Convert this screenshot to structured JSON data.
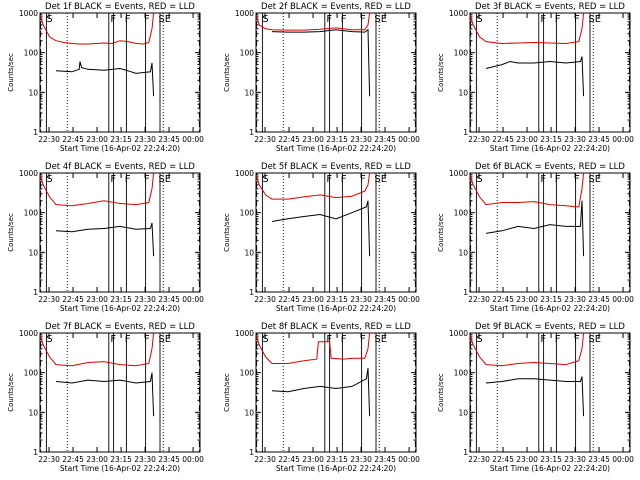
{
  "chart_data": {
    "type": "line",
    "ylabel": "Counts/sec",
    "xlabel": "Start Time (16-Apr-02 22:24:20)",
    "y_scale": "log",
    "ylim": [
      1,
      1000
    ],
    "y_ticks": [
      1,
      10,
      100,
      1000
    ],
    "y_tick_labels": [
      "1",
      "10",
      "100",
      "1000"
    ],
    "x_unit": "minutes after 22:24:20",
    "xlim": [
      0,
      100
    ],
    "x_ticks": [
      5.67,
      20.67,
      35.67,
      50.67,
      65.67,
      80.67,
      95.67
    ],
    "x_tick_labels": [
      "22:30",
      "22:45",
      "23:00",
      "23:15",
      "23:30",
      "23:45",
      "00:00"
    ],
    "colors": {
      "events": "#000000",
      "lld": "#e00000"
    },
    "panels": [
      {
        "title": "Det 1f BLACK = Events, RED = LLD",
        "markers": [
          "S",
          "F",
          "F",
          "F",
          "SE"
        ],
        "events": {
          "x": [
            10,
            20,
            24.5,
            25,
            26,
            30,
            40,
            50,
            55,
            60,
            69,
            70,
            71
          ],
          "y": [
            35,
            33,
            38,
            60,
            42,
            38,
            36,
            40,
            35,
            30,
            33,
            55,
            8
          ]
        },
        "lld": {
          "x": [
            0,
            2,
            6,
            10,
            15,
            20,
            25,
            30,
            40,
            45,
            50,
            55,
            60,
            65,
            68,
            70,
            71
          ],
          "y": [
            900,
            500,
            250,
            200,
            180,
            170,
            165,
            165,
            175,
            170,
            200,
            190,
            170,
            165,
            180,
            400,
            1000
          ]
        }
      },
      {
        "title": "Det 2f BLACK = Events, RED = LLD",
        "markers": [
          "S",
          "F",
          "F",
          "F",
          "SE"
        ],
        "events": {
          "x": [
            10,
            20,
            30,
            40,
            50,
            60,
            68,
            70,
            71
          ],
          "y": [
            340,
            330,
            330,
            340,
            380,
            340,
            330,
            380,
            8
          ]
        },
        "lld": {
          "x": [
            0,
            2,
            6,
            10,
            20,
            30,
            40,
            50,
            60,
            68,
            70,
            71
          ],
          "y": [
            900,
            500,
            400,
            380,
            370,
            370,
            390,
            420,
            380,
            380,
            500,
            1000
          ]
        }
      },
      {
        "title": "Det 3f BLACK = Events, RED = LLD",
        "markers": [
          "S",
          "F",
          "F",
          "F",
          "SE"
        ],
        "events": {
          "x": [
            10,
            20,
            25,
            30,
            40,
            50,
            60,
            69,
            70,
            71
          ],
          "y": [
            40,
            50,
            60,
            55,
            55,
            60,
            55,
            60,
            80,
            8
          ]
        },
        "lld": {
          "x": [
            0,
            2,
            6,
            10,
            20,
            30,
            40,
            50,
            60,
            68,
            70,
            71
          ],
          "y": [
            900,
            500,
            250,
            190,
            170,
            175,
            180,
            175,
            170,
            190,
            400,
            1000
          ]
        }
      },
      {
        "title": "Det 4f BLACK = Events, RED = LLD",
        "markers": [
          "S",
          "F",
          "F",
          "F",
          "SE"
        ],
        "events": {
          "x": [
            10,
            20,
            30,
            40,
            50,
            60,
            69,
            70,
            71
          ],
          "y": [
            35,
            33,
            38,
            40,
            45,
            38,
            40,
            55,
            8
          ]
        },
        "lld": {
          "x": [
            0,
            2,
            6,
            10,
            20,
            30,
            40,
            50,
            60,
            68,
            70,
            71
          ],
          "y": [
            900,
            500,
            250,
            160,
            150,
            170,
            200,
            170,
            160,
            180,
            400,
            1000
          ]
        }
      },
      {
        "title": "Det 5f BLACK = Events, RED = LLD",
        "markers": [
          "S",
          "F",
          "F",
          "F",
          "SE"
        ],
        "events": {
          "x": [
            10,
            20,
            30,
            40,
            50,
            60,
            69,
            70,
            71
          ],
          "y": [
            60,
            70,
            80,
            90,
            70,
            100,
            140,
            200,
            8
          ]
        },
        "lld": {
          "x": [
            0,
            2,
            6,
            10,
            20,
            30,
            40,
            50,
            60,
            68,
            70,
            71
          ],
          "y": [
            900,
            500,
            280,
            220,
            220,
            250,
            280,
            240,
            260,
            350,
            500,
            1000
          ]
        }
      },
      {
        "title": "Det 6f BLACK = Events, RED = LLD",
        "markers": [
          "S",
          "F",
          "F",
          "F",
          "SE"
        ],
        "events": {
          "x": [
            10,
            20,
            30,
            40,
            50,
            60,
            69,
            70,
            71
          ],
          "y": [
            30,
            35,
            45,
            40,
            50,
            45,
            45,
            200,
            8
          ]
        },
        "lld": {
          "x": [
            0,
            2,
            6,
            10,
            20,
            30,
            40,
            50,
            60,
            68,
            70,
            71
          ],
          "y": [
            900,
            500,
            250,
            160,
            180,
            180,
            190,
            160,
            150,
            140,
            400,
            1000
          ]
        }
      },
      {
        "title": "Det 7f BLACK = Events, RED = LLD",
        "markers": [
          "S",
          "F",
          "F",
          "F",
          "SE"
        ],
        "events": {
          "x": [
            10,
            20,
            30,
            40,
            50,
            60,
            69,
            70,
            71
          ],
          "y": [
            60,
            55,
            65,
            60,
            65,
            55,
            60,
            100,
            8
          ]
        },
        "lld": {
          "x": [
            0,
            2,
            6,
            10,
            20,
            30,
            40,
            50,
            60,
            68,
            70,
            71
          ],
          "y": [
            900,
            500,
            250,
            160,
            150,
            180,
            190,
            160,
            150,
            170,
            400,
            1000
          ]
        }
      },
      {
        "title": "Det 8f BLACK = Events, RED = LLD",
        "markers": [
          "S",
          "F",
          "F",
          "F",
          "SE"
        ],
        "events": {
          "x": [
            10,
            20,
            30,
            40,
            50,
            60,
            69,
            70,
            71
          ],
          "y": [
            35,
            33,
            40,
            45,
            40,
            45,
            70,
            130,
            8
          ]
        },
        "lld": {
          "x": [
            0,
            2,
            6,
            10,
            20,
            30,
            38,
            39,
            46,
            47,
            55,
            60,
            68,
            70,
            71
          ],
          "y": [
            900,
            500,
            250,
            170,
            170,
            200,
            220,
            600,
            600,
            230,
            220,
            230,
            230,
            400,
            1000
          ]
        }
      },
      {
        "title": "Det 9f BLACK = Events, RED = LLD",
        "markers": [
          "S",
          "F",
          "F",
          "F",
          "SE"
        ],
        "events": {
          "x": [
            10,
            20,
            30,
            40,
            50,
            60,
            69,
            70,
            71
          ],
          "y": [
            55,
            60,
            70,
            70,
            65,
            60,
            60,
            80,
            8
          ]
        },
        "lld": {
          "x": [
            0,
            2,
            6,
            10,
            20,
            30,
            40,
            50,
            60,
            68,
            70,
            71
          ],
          "y": [
            900,
            500,
            250,
            160,
            150,
            170,
            180,
            170,
            160,
            200,
            400,
            1000
          ]
        }
      }
    ]
  }
}
